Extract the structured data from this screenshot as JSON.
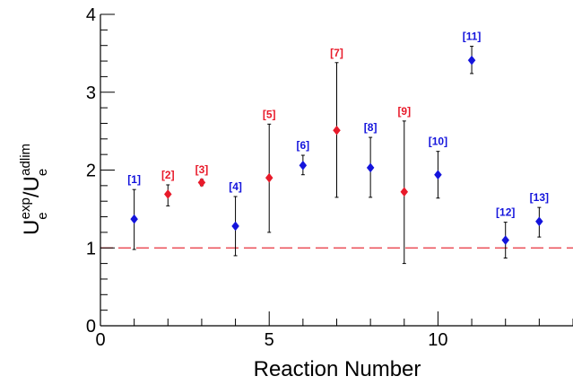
{
  "chart_data": {
    "type": "scatter",
    "title": "",
    "xlabel": "Reaction Number",
    "ylabel": {
      "main": "U",
      "sup1": "exp",
      "sub1": "e",
      "slash": "/U",
      "sup2": "adlim",
      "sub2": "e"
    },
    "xlim": [
      0,
      14
    ],
    "ylim": [
      0,
      4
    ],
    "xticks": [
      0,
      5,
      10
    ],
    "xtick_labels": [
      "0",
      "5",
      "10"
    ],
    "yticks": [
      0,
      1,
      2,
      3,
      4
    ],
    "ytick_labels": [
      "0",
      "1",
      "2",
      "3",
      "4"
    ],
    "grid": false,
    "reference_line": {
      "y": 1,
      "style": "dashed",
      "color": "#e8323c"
    },
    "colors": {
      "blue": "#1414dc",
      "red": "#e81a2a",
      "axis": "#000000"
    },
    "points": [
      {
        "x": 1,
        "y": 1.37,
        "low": 0.98,
        "high": 1.75,
        "label": "[1]",
        "color": "blue"
      },
      {
        "x": 2,
        "y": 1.69,
        "low": 1.54,
        "high": 1.81,
        "label": "[2]",
        "color": "red"
      },
      {
        "x": 3,
        "y": 1.84,
        "low": 1.8,
        "high": 1.88,
        "label": "[3]",
        "color": "red"
      },
      {
        "x": 4,
        "y": 1.28,
        "low": 0.9,
        "high": 1.66,
        "label": "[4]",
        "color": "blue"
      },
      {
        "x": 5,
        "y": 1.9,
        "low": 1.2,
        "high": 2.59,
        "label": "[5]",
        "color": "red"
      },
      {
        "x": 6,
        "y": 2.06,
        "low": 1.94,
        "high": 2.19,
        "label": "[6]",
        "color": "blue"
      },
      {
        "x": 7,
        "y": 2.51,
        "low": 1.65,
        "high": 3.38,
        "label": "[7]",
        "color": "red"
      },
      {
        "x": 8,
        "y": 2.03,
        "low": 1.65,
        "high": 2.42,
        "label": "[8]",
        "color": "blue"
      },
      {
        "x": 9,
        "y": 1.72,
        "low": 0.8,
        "high": 2.63,
        "label": "[9]",
        "color": "red"
      },
      {
        "x": 10,
        "y": 1.94,
        "low": 1.64,
        "high": 2.24,
        "label": "[10]",
        "color": "blue"
      },
      {
        "x": 11,
        "y": 3.41,
        "low": 3.24,
        "high": 3.59,
        "label": "[11]",
        "color": "blue"
      },
      {
        "x": 12,
        "y": 1.1,
        "low": 0.87,
        "high": 1.33,
        "label": "[12]",
        "color": "blue"
      },
      {
        "x": 13,
        "y": 1.34,
        "low": 1.14,
        "high": 1.52,
        "label": "[13]",
        "color": "blue"
      }
    ]
  }
}
